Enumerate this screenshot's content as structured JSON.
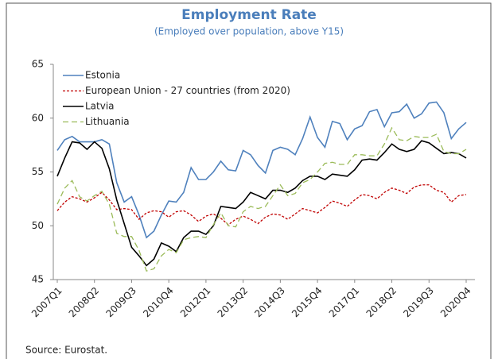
{
  "chart_data": {
    "type": "line",
    "title": "Employment Rate",
    "subtitle": "(Employed over population, above Y15)",
    "source": "Source: Eurostat.",
    "categories": [
      "2007Q1",
      null,
      null,
      null,
      null,
      "2008Q2",
      null,
      null,
      null,
      null,
      "2009Q3",
      null,
      null,
      null,
      null,
      "2010Q4",
      null,
      null,
      null,
      null,
      "2012Q1",
      null,
      null,
      null,
      null,
      "2013Q2",
      null,
      null,
      null,
      null,
      "2014Q3",
      null,
      null,
      null,
      null,
      "2015Q4",
      null,
      null,
      null,
      null,
      "2017Q1",
      null,
      null,
      null,
      null,
      "2018Q2",
      null,
      null,
      null,
      null,
      "2019Q3",
      null,
      null,
      null,
      null,
      "2020Q4"
    ],
    "ylim": [
      45,
      65
    ],
    "yticks": [
      45,
      50,
      55,
      60,
      65
    ],
    "legend": "upper left",
    "series": [
      {
        "name": "Estonia",
        "color": "#4f81bd",
        "style": "solid",
        "values": [
          57.0,
          58.0,
          58.3,
          57.8,
          57.8,
          57.8,
          58.0,
          57.6,
          54.0,
          52.2,
          52.7,
          51.0,
          48.9,
          49.5,
          51.0,
          52.3,
          52.2,
          53.1,
          55.4,
          54.3,
          54.3,
          55.0,
          56.0,
          55.2,
          55.1,
          57.0,
          56.6,
          55.6,
          54.9,
          57.0,
          57.3,
          57.1,
          56.6,
          58.1,
          60.1,
          58.2,
          57.3,
          59.7,
          59.5,
          58.0,
          59.0,
          59.3,
          60.6,
          60.8,
          59.2,
          60.5,
          60.6,
          61.3,
          60.0,
          60.4,
          61.4,
          61.5,
          60.5,
          58.1,
          59.0,
          59.6
        ]
      },
      {
        "name": "European Union - 27 countries (from 2020)",
        "color": "#c00000",
        "style": "dotted",
        "values": [
          51.4,
          52.2,
          52.7,
          52.5,
          52.2,
          52.6,
          53.1,
          52.4,
          51.5,
          51.6,
          51.5,
          50.6,
          51.2,
          51.4,
          51.3,
          50.8,
          51.3,
          51.4,
          51.0,
          50.4,
          50.9,
          51.1,
          50.7,
          50.1,
          50.6,
          50.9,
          50.6,
          50.2,
          50.8,
          51.1,
          51.0,
          50.6,
          51.1,
          51.6,
          51.4,
          51.2,
          51.7,
          52.3,
          52.1,
          51.8,
          52.4,
          52.9,
          52.8,
          52.5,
          53.1,
          53.5,
          53.3,
          53.0,
          53.6,
          53.8,
          53.8,
          53.3,
          53.1,
          52.2,
          52.8,
          52.9
        ]
      },
      {
        "name": "Latvia",
        "color": "#000000",
        "style": "solid",
        "values": [
          54.6,
          56.3,
          57.8,
          57.7,
          57.1,
          57.8,
          57.2,
          55.3,
          52.4,
          50.2,
          48.0,
          47.2,
          46.3,
          46.9,
          48.4,
          48.1,
          47.6,
          48.9,
          49.5,
          49.5,
          49.2,
          50.0,
          51.8,
          51.7,
          51.6,
          52.2,
          53.1,
          52.8,
          52.5,
          53.3,
          53.3,
          53.1,
          53.5,
          54.2,
          54.6,
          54.6,
          54.3,
          54.8,
          54.7,
          54.6,
          55.2,
          56.1,
          56.2,
          56.1,
          56.8,
          57.6,
          57.1,
          56.9,
          57.1,
          57.9,
          57.7,
          57.2,
          56.7,
          56.8,
          56.7,
          56.3
        ]
      },
      {
        "name": "Lithuania",
        "color": "#9bbb59",
        "style": "dashed",
        "values": [
          52.0,
          53.5,
          54.2,
          52.7,
          52.3,
          52.8,
          53.2,
          52.0,
          49.3,
          49.0,
          49.0,
          47.7,
          45.8,
          46.0,
          47.2,
          47.8,
          47.5,
          48.7,
          48.9,
          49.0,
          48.9,
          50.1,
          51.2,
          50.0,
          49.9,
          51.3,
          51.8,
          51.6,
          51.8,
          52.8,
          53.8,
          52.8,
          53.0,
          54.0,
          54.3,
          55.0,
          55.8,
          55.9,
          55.7,
          55.7,
          56.6,
          56.6,
          56.5,
          56.5,
          57.6,
          59.1,
          58.0,
          57.9,
          58.3,
          58.2,
          58.2,
          58.5,
          56.9,
          56.7,
          56.7,
          57.1
        ]
      }
    ]
  }
}
